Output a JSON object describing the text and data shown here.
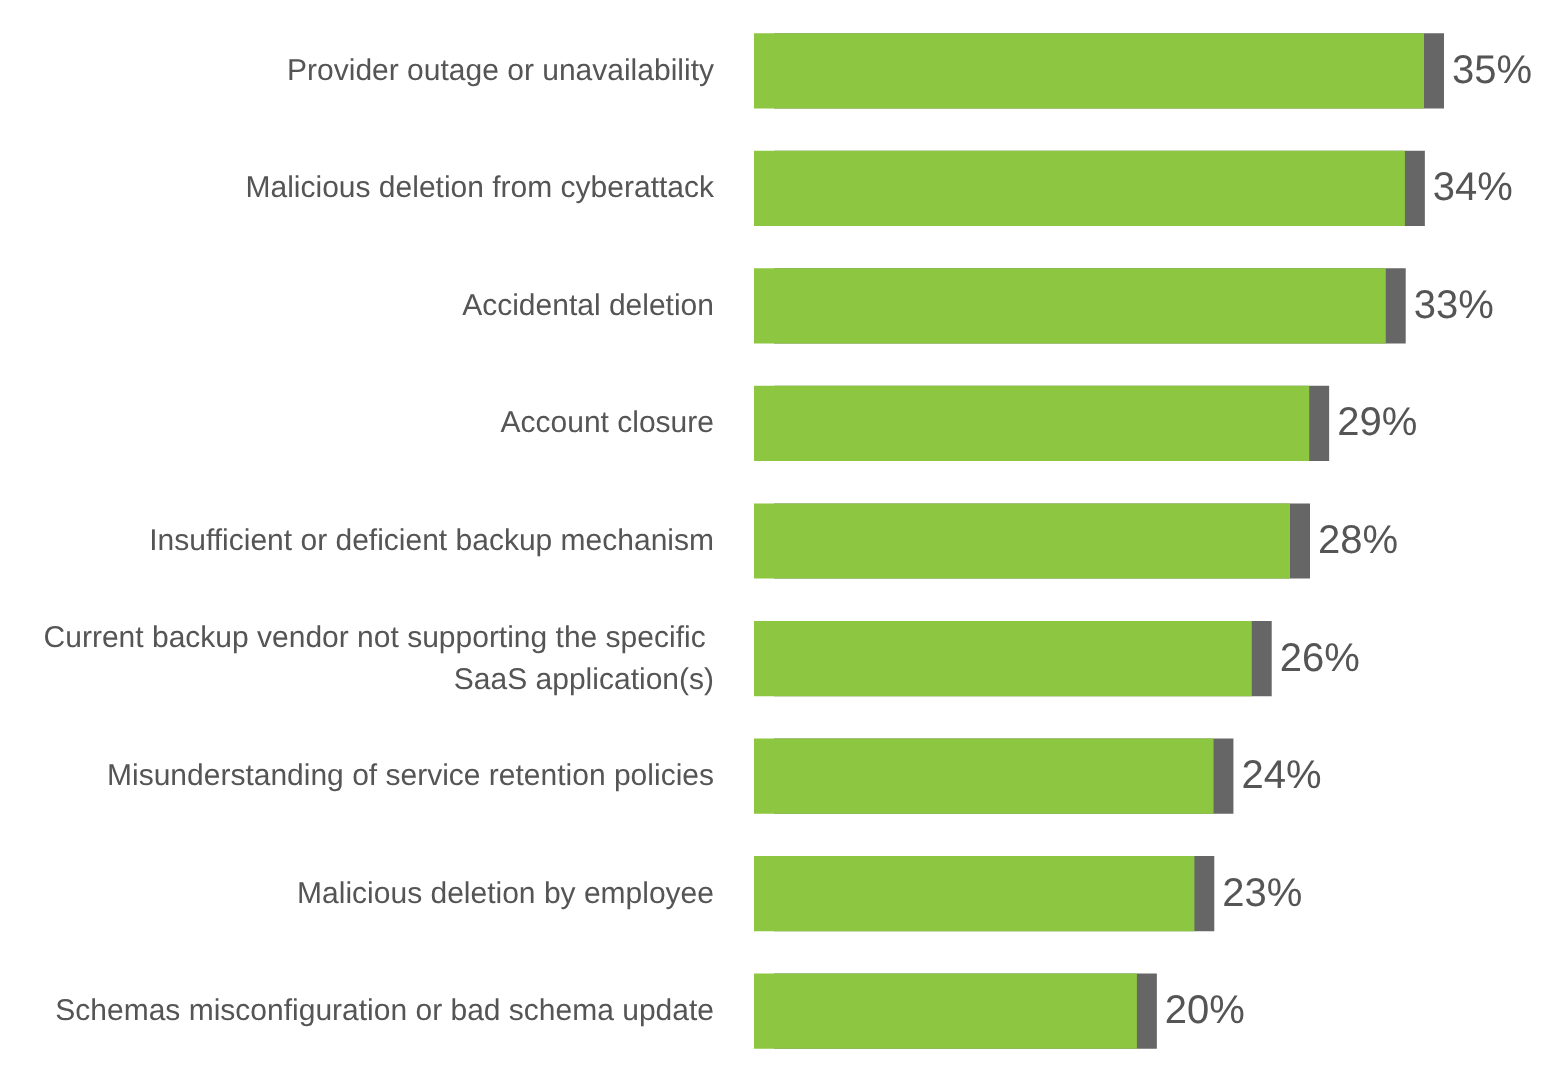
{
  "chart_data": {
    "type": "bar",
    "orientation": "horizontal",
    "categories": [
      "Provider outage or unavailability",
      "Malicious deletion from cyberattack",
      "Accidental deletion",
      "Account closure",
      "Insufficient or deficient backup mechanism",
      "Current backup vendor not supporting the specific SaaS application(s)",
      "Misunderstanding of service retention policies",
      "Malicious deletion by employee",
      "Schemas misconfiguration or bad schema update"
    ],
    "values": [
      35,
      34,
      33,
      29,
      28,
      26,
      24,
      23,
      20
    ],
    "value_labels": [
      "35%",
      "34%",
      "33%",
      "29%",
      "28%",
      "26%",
      "24%",
      "23%",
      "20%"
    ],
    "color": "#8dc63f"
  }
}
